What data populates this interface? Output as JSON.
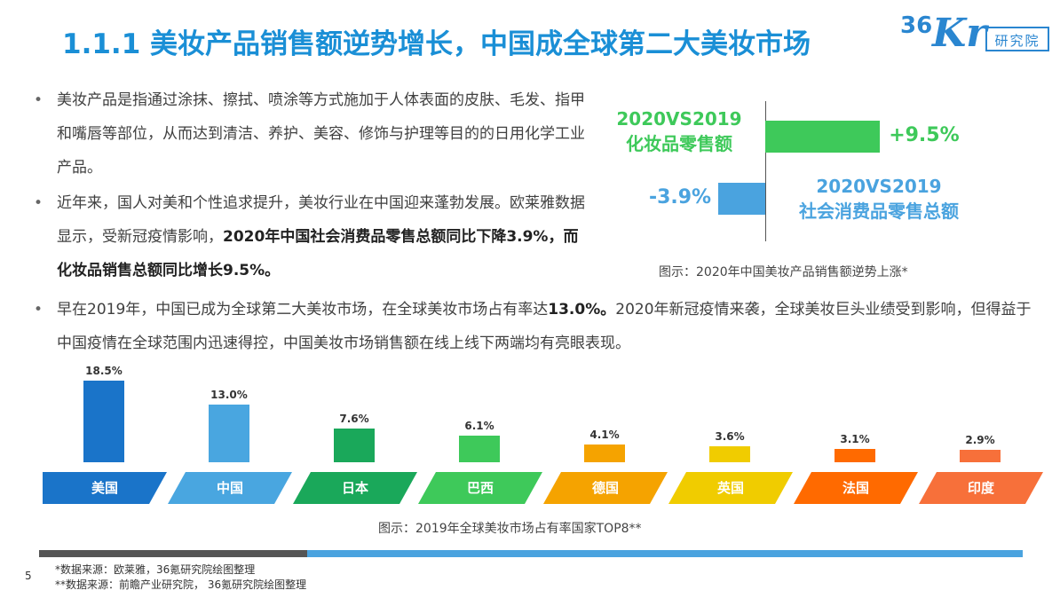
{
  "title": "1.1.1 美妆产品销售额逆势增长，中国成全球第二大美妆市场",
  "logo": {
    "number": "36",
    "brand": "Kr",
    "sub": "研究院"
  },
  "bullets": [
    {
      "text": "美妆产品是指通过涂抹、擦拭、喷涂等方式施加于人体表面的皮肤、毛发、指甲和嘴唇等部位，从而达到清洁、养护、美容、修饰与护理等目的的日用化学工业产品。"
    },
    {
      "text_plain": "近年来，国人对美和个性追求提升，美妆行业在中国迎来蓬勃发展。欧莱雅数据显示，受新冠疫情影响，",
      "text_bold": "2020年中国社会消费品零售总额同比下降3.9%，而化妆品销售总额同比增长9.5%。"
    },
    {
      "text_plain1": "早在2019年，中国已成为全球第二大美妆市场，在全球美妆市场占有率达",
      "text_bold": "13.0%。",
      "text_plain2": "2020年新冠疫情来袭，全球美妆巨头业绩受到影响，但得益于中国疫情在全球范围内迅速得控，中国美妆市场销售额在线上线下两端均有亮眼表现。"
    }
  ],
  "bullet_symbol": "•",
  "chart_data": [
    {
      "type": "bar",
      "orientation": "horizontal-diverging",
      "categories": [
        "2020VS2019 化妆品零售额",
        "2020VS2019 社会消费品零售总额"
      ],
      "label_lines": [
        [
          "2020VS2019",
          "化妆品零售额"
        ],
        [
          "2020VS2019",
          "社会消费品零售总额"
        ]
      ],
      "values": [
        9.5,
        -3.9
      ],
      "value_labels": [
        "+9.5%",
        "-3.9%"
      ],
      "colors": [
        "#3ec95a",
        "#4aa3df"
      ],
      "caption": "图示：2020年中国美妆产品销售额逆势上涨*"
    },
    {
      "type": "bar",
      "categories": [
        "美国",
        "中国",
        "日本",
        "巴西",
        "德国",
        "英国",
        "法国",
        "印度"
      ],
      "values": [
        18.5,
        13.0,
        7.6,
        6.1,
        4.1,
        3.6,
        3.1,
        2.9
      ],
      "value_labels": [
        "18.5%",
        "13.0%",
        "7.6%",
        "6.1%",
        "4.1%",
        "3.6%",
        "3.1%",
        "2.9%"
      ],
      "colors": [
        "#1a74c9",
        "#49a6e0",
        "#1aa85a",
        "#3ec95a",
        "#f5a300",
        "#f0cc00",
        "#ff6a00",
        "#f7703a"
      ],
      "caption": "图示：2019年全球美妆市场占有率国家TOP8**"
    }
  ],
  "footer": {
    "page_number": "5",
    "source1": "*数据来源：欧莱雅，36氪研究院绘图整理",
    "source2": "**数据来源：前瞻产业研究院， 36氪研究院绘图整理"
  }
}
